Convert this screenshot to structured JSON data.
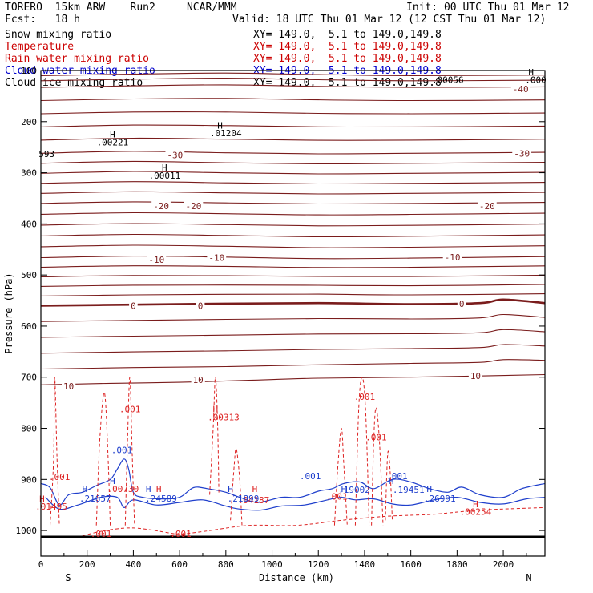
{
  "header": {
    "model": "TORERO  15km ARW    Run2     NCAR/MMM",
    "init": "Init: 00 UTC Thu 01 Mar 12",
    "fcst": "Fcst:   18 h",
    "valid": "Valid: 18 UTC Thu 01 Mar 12 (12 CST Thu 01 Mar 12)"
  },
  "legend": [
    {
      "label": "Snow mixing ratio",
      "xy": "XY= 149.0,  5.1 to 149.0,149.8",
      "color": "#000000"
    },
    {
      "label": "Temperature",
      "xy": "XY= 149.0,  5.1 to 149.0,149.8",
      "color": "#cc0000"
    },
    {
      "label": "Rain water mixing ratio",
      "xy": "XY= 149.0,  5.1 to 149.0,149.8",
      "color": "#cc0000"
    },
    {
      "label": "Cloud water mixing ratio",
      "xy": "XY= 149.0,  5.1 to 149.0,149.8",
      "color": "#0000cc"
    },
    {
      "label": "Cloud ice mixing ratio",
      "xy": "XY= 149.0,  5.1 to 149.0,149.8",
      "color": "#000000"
    }
  ],
  "chart_data": {
    "type": "contour cross-section",
    "xlabel": "Distance (km)",
    "ylabel": "Pressure (hPa)",
    "xlim": [
      0,
      2180
    ],
    "ylim": [
      1050,
      100
    ],
    "xticks": [
      0,
      200,
      400,
      600,
      800,
      1000,
      1200,
      1400,
      1600,
      1800,
      2000
    ],
    "yticks": [
      100,
      200,
      300,
      400,
      500,
      600,
      700,
      800,
      900,
      1000
    ],
    "end_labels": {
      "left": "S",
      "right": "N"
    },
    "colors": {
      "temperature": "#7a1c1c",
      "rain": "#dd2222",
      "cloud_water": "#1f3fcc",
      "ice": "#000000"
    },
    "isotherms": [
      {
        "label": "-40",
        "anchors": [
          [
            0,
            133
          ],
          [
            400,
            130
          ],
          [
            800,
            128
          ],
          [
            1200,
            131
          ],
          [
            1600,
            133
          ],
          [
            2180,
            132
          ]
        ]
      },
      {
        "label": "-30",
        "anchors": [
          [
            0,
            262
          ],
          [
            400,
            258
          ],
          [
            800,
            261
          ],
          [
            1200,
            263
          ],
          [
            1600,
            262
          ],
          [
            2180,
            260
          ]
        ]
      },
      {
        "label": "-20",
        "anchors": [
          [
            0,
            360
          ],
          [
            400,
            357
          ],
          [
            800,
            359
          ],
          [
            1200,
            361
          ],
          [
            1600,
            360
          ],
          [
            2180,
            358
          ]
        ]
      },
      {
        "label": "-10",
        "anchors": [
          [
            0,
            466
          ],
          [
            400,
            463
          ],
          [
            800,
            465
          ],
          [
            1200,
            468
          ],
          [
            1600,
            467
          ],
          [
            2180,
            464
          ]
        ]
      },
      {
        "label": "0",
        "anchors": [
          [
            0,
            560
          ],
          [
            400,
            558
          ],
          [
            800,
            556
          ],
          [
            1200,
            555
          ],
          [
            1600,
            557
          ],
          [
            1900,
            555
          ],
          [
            2000,
            548
          ],
          [
            2180,
            555
          ]
        ]
      },
      {
        "label": "10",
        "anchors": [
          [
            0,
            715
          ],
          [
            300,
            712
          ],
          [
            600,
            710
          ],
          [
            900,
            706
          ],
          [
            1200,
            702
          ],
          [
            1600,
            700
          ],
          [
            2180,
            695
          ]
        ]
      }
    ],
    "isotherm_labels": [
      {
        "text": "-40",
        "x": 2075,
        "p": 136
      },
      {
        "text": "-30",
        "x": 580,
        "p": 265
      },
      {
        "text": "-30",
        "x": 2080,
        "p": 262
      },
      {
        "text": "-20",
        "x": 520,
        "p": 365
      },
      {
        "text": "-20",
        "x": 660,
        "p": 365
      },
      {
        "text": "-20",
        "x": 1930,
        "p": 365
      },
      {
        "text": "-10",
        "x": 500,
        "p": 470
      },
      {
        "text": "-10",
        "x": 760,
        "p": 466
      },
      {
        "text": "-10",
        "x": 1780,
        "p": 465
      },
      {
        "text": "0",
        "x": 400,
        "p": 560
      },
      {
        "text": "0",
        "x": 690,
        "p": 560
      },
      {
        "text": "0",
        "x": 1820,
        "p": 556
      },
      {
        "text": "10",
        "x": 120,
        "p": 718
      },
      {
        "text": "10",
        "x": 680,
        "p": 705
      },
      {
        "text": "10",
        "x": 1880,
        "p": 697
      }
    ],
    "labels": [
      {
        "text": "H",
        "x": 310,
        "p": 225,
        "color": "ice"
      },
      {
        "text": ".00221",
        "x": 310,
        "p": 240,
        "color": "ice"
      },
      {
        "text": "H",
        "x": 535,
        "p": 290,
        "color": "ice"
      },
      {
        "text": ".00011",
        "x": 535,
        "p": 305,
        "color": "ice"
      },
      {
        "text": "H",
        "x": 775,
        "p": 207,
        "color": "ice"
      },
      {
        "text": ".01204",
        "x": 800,
        "p": 222,
        "color": "ice"
      },
      {
        "text": "593",
        "x": 25,
        "p": 263,
        "color": "ice"
      },
      {
        "text": ".00056",
        "x": 1760,
        "p": 118,
        "color": "ice"
      },
      {
        "text": "H",
        "x": 2120,
        "p": 103,
        "color": "ice"
      },
      {
        "text": ".000",
        "x": 2140,
        "p": 118,
        "color": "ice"
      },
      {
        "text": "H",
        "x": 755,
        "p": 762,
        "color": "rain"
      },
      {
        "text": ".00313",
        "x": 790,
        "p": 778,
        "color": "rain"
      },
      {
        "text": ".001",
        "x": 1400,
        "p": 738,
        "color": "rain"
      },
      {
        "text": ".001",
        "x": 1450,
        "p": 817,
        "color": "rain"
      },
      {
        "text": ".001",
        "x": 385,
        "p": 762,
        "color": "rain"
      },
      {
        "text": ".001",
        "x": 80,
        "p": 895,
        "color": "rain"
      },
      {
        "text": ".001",
        "x": 260,
        "p": 1006,
        "color": "rain"
      },
      {
        "text": ".001",
        "x": 605,
        "p": 1006,
        "color": "rain"
      },
      {
        "text": ".001",
        "x": 1280,
        "p": 933,
        "color": "rain"
      },
      {
        "text": ".00730",
        "x": 355,
        "p": 918,
        "color": "rain"
      },
      {
        "text": "H",
        "x": 5,
        "p": 938,
        "color": "rain"
      },
      {
        "text": ".01495",
        "x": 45,
        "p": 953,
        "color": "rain"
      },
      {
        "text": "H",
        "x": 1880,
        "p": 948,
        "color": "rain"
      },
      {
        "text": ".00254",
        "x": 1880,
        "p": 963,
        "color": "rain"
      },
      {
        "text": "H",
        "x": 510,
        "p": 918,
        "color": "rain"
      },
      {
        "text": "H",
        "x": 925,
        "p": 918,
        "color": "rain"
      },
      {
        "text": ".04187",
        "x": 920,
        "p": 940,
        "color": "rain"
      },
      {
        "text": ".001",
        "x": 1165,
        "p": 893,
        "color": "cloud_water"
      },
      {
        "text": ".001",
        "x": 1540,
        "p": 893,
        "color": "cloud_water"
      },
      {
        "text": ".001",
        "x": 350,
        "p": 842,
        "color": "cloud_water"
      },
      {
        "text": "H",
        "x": 190,
        "p": 918,
        "color": "cloud_water"
      },
      {
        "text": ".21657",
        "x": 235,
        "p": 937,
        "color": "cloud_water"
      },
      {
        "text": "H",
        "x": 310,
        "p": 903,
        "color": "cloud_water"
      },
      {
        "text": "H",
        "x": 465,
        "p": 918,
        "color": "cloud_water"
      },
      {
        "text": ".24589",
        "x": 520,
        "p": 937,
        "color": "cloud_water"
      },
      {
        "text": "H",
        "x": 820,
        "p": 918,
        "color": "cloud_water"
      },
      {
        "text": ".21899",
        "x": 875,
        "p": 937,
        "color": "cloud_water"
      },
      {
        "text": "H",
        "x": 1310,
        "p": 918,
        "color": "cloud_water"
      },
      {
        "text": ".19002",
        "x": 1355,
        "p": 920,
        "color": "cloud_water"
      },
      {
        "text": "H",
        "x": 1515,
        "p": 903,
        "color": "cloud_water"
      },
      {
        "text": ".19451",
        "x": 1590,
        "p": 920,
        "color": "cloud_water"
      },
      {
        "text": "H",
        "x": 1680,
        "p": 918,
        "color": "cloud_water"
      },
      {
        "text": ".26991",
        "x": 1725,
        "p": 937,
        "color": "cloud_water"
      }
    ],
    "cloud_water_contours": [
      [
        [
          0,
          908
        ],
        [
          40,
          916
        ],
        [
          80,
          950
        ],
        [
          120,
          930
        ],
        [
          180,
          925
        ],
        [
          240,
          912
        ],
        [
          300,
          900
        ],
        [
          330,
          880
        ],
        [
          360,
          860
        ],
        [
          380,
          880
        ],
        [
          400,
          925
        ],
        [
          440,
          935
        ],
        [
          520,
          938
        ],
        [
          600,
          935
        ],
        [
          660,
          916
        ],
        [
          720,
          918
        ],
        [
          800,
          925
        ],
        [
          860,
          935
        ],
        [
          940,
          945
        ],
        [
          1040,
          935
        ],
        [
          1120,
          935
        ],
        [
          1200,
          923
        ],
        [
          1260,
          918
        ],
        [
          1310,
          908
        ],
        [
          1380,
          905
        ],
        [
          1440,
          918
        ],
        [
          1520,
          900
        ],
        [
          1600,
          905
        ],
        [
          1680,
          918
        ],
        [
          1760,
          925
        ],
        [
          1820,
          915
        ],
        [
          1900,
          930
        ],
        [
          2000,
          935
        ],
        [
          2080,
          918
        ],
        [
          2180,
          908
        ]
      ],
      [
        [
          20,
          935
        ],
        [
          80,
          958
        ],
        [
          160,
          950
        ],
        [
          260,
          935
        ],
        [
          330,
          935
        ],
        [
          360,
          955
        ],
        [
          400,
          940
        ],
        [
          500,
          950
        ],
        [
          600,
          945
        ],
        [
          700,
          940
        ],
        [
          800,
          952
        ],
        [
          860,
          958
        ],
        [
          950,
          960
        ],
        [
          1040,
          952
        ],
        [
          1140,
          950
        ],
        [
          1240,
          940
        ],
        [
          1300,
          935
        ],
        [
          1360,
          940
        ],
        [
          1440,
          938
        ],
        [
          1520,
          948
        ],
        [
          1600,
          950
        ],
        [
          1700,
          940
        ],
        [
          1800,
          935
        ],
        [
          1900,
          945
        ],
        [
          2000,
          948
        ],
        [
          2100,
          938
        ],
        [
          2180,
          935
        ]
      ]
    ],
    "rain_contours": [
      [
        [
          40,
          990
        ],
        [
          55,
          860
        ],
        [
          60,
          700
        ],
        [
          70,
          860
        ],
        [
          80,
          990
        ]
      ],
      [
        [
          240,
          990
        ],
        [
          255,
          820
        ],
        [
          275,
          730
        ],
        [
          290,
          850
        ],
        [
          300,
          990
        ]
      ],
      [
        [
          365,
          990
        ],
        [
          375,
          820
        ],
        [
          385,
          700
        ],
        [
          395,
          850
        ],
        [
          405,
          990
        ]
      ],
      [
        [
          730,
          930
        ],
        [
          745,
          800
        ],
        [
          755,
          700
        ],
        [
          765,
          800
        ],
        [
          770,
          930
        ]
      ],
      [
        [
          820,
          980
        ],
        [
          835,
          880
        ],
        [
          845,
          840
        ],
        [
          860,
          900
        ],
        [
          870,
          990
        ]
      ],
      [
        [
          1270,
          990
        ],
        [
          1285,
          870
        ],
        [
          1300,
          800
        ],
        [
          1310,
          870
        ],
        [
          1325,
          990
        ]
      ],
      [
        [
          1360,
          990
        ],
        [
          1375,
          760
        ],
        [
          1390,
          700
        ],
        [
          1405,
          770
        ],
        [
          1420,
          990
        ]
      ],
      [
        [
          1430,
          990
        ],
        [
          1440,
          820
        ],
        [
          1450,
          760
        ],
        [
          1465,
          830
        ],
        [
          1480,
          990
        ]
      ],
      [
        [
          1490,
          980
        ],
        [
          1500,
          850
        ],
        [
          1510,
          880
        ],
        [
          1520,
          980
        ]
      ],
      [
        [
          180,
          1010
        ],
        [
          280,
          1000
        ],
        [
          400,
          995
        ],
        [
          560,
          1005
        ],
        [
          640,
          1012
        ]
      ],
      [
        [
          560,
          1010
        ],
        [
          700,
          1002
        ],
        [
          900,
          990
        ],
        [
          1100,
          990
        ],
        [
          1300,
          980
        ],
        [
          1500,
          972
        ],
        [
          1700,
          968
        ],
        [
          1900,
          960
        ],
        [
          2180,
          955
        ]
      ]
    ]
  }
}
